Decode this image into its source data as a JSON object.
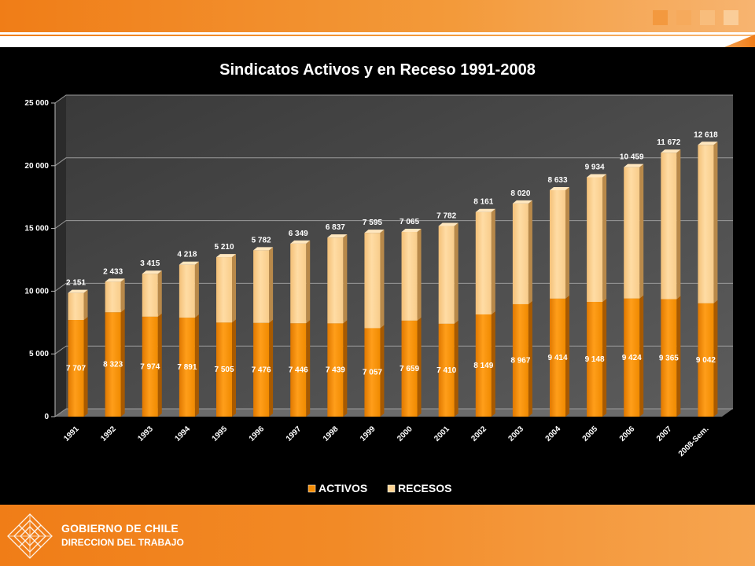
{
  "colors": {
    "accent": "#f07d17",
    "activos": "#f28c06",
    "recesos": "#fcd291",
    "panel": "#000000",
    "text": "#ffffff"
  },
  "footer": {
    "org": "GOBIERNO DE CHILE",
    "dept": "DIRECCION DEL TRABAJO",
    "logo_icon": "gobierno-de-chile-logo"
  },
  "chart_data": {
    "type": "bar",
    "stacked": true,
    "title": "Sindicatos Activos y en Receso 1991-2008",
    "categories": [
      "1991",
      "1992",
      "1993",
      "1994",
      "1995",
      "1996",
      "1997",
      "1998",
      "1999",
      "2000",
      "2001",
      "2002",
      "2003",
      "2004",
      "2005",
      "2006",
      "2007",
      "2008-Sem."
    ],
    "series": [
      {
        "name": "ACTIVOS",
        "values": [
          7707,
          8323,
          7974,
          7891,
          7505,
          7476,
          7446,
          7439,
          7057,
          7659,
          7410,
          8149,
          8967,
          9414,
          9148,
          9424,
          9365,
          9042
        ]
      },
      {
        "name": "RECESOS",
        "values": [
          2151,
          2433,
          3415,
          4218,
          5210,
          5782,
          6349,
          6837,
          7595,
          7065,
          7782,
          8161,
          8020,
          8633,
          9934,
          10459,
          11672,
          12618
        ]
      }
    ],
    "data_labels": {
      "ACTIVOS": [
        "7 707",
        "8 323",
        "7 974",
        "7 891",
        "7 505",
        "7 476",
        "7 446",
        "7 439",
        "7 057",
        "7 659",
        "7 410",
        "8 149",
        "8 967",
        "9 414",
        "9 148",
        "9 424",
        "9 365",
        "9 042"
      ],
      "RECESOS": [
        "2 151",
        "2 433",
        "3 415",
        "4 218",
        "5 210",
        "5 782",
        "6 349",
        "6 837",
        "7 595",
        "7 065",
        "7 782",
        "8 161",
        "8 020",
        "8 633",
        "9 934",
        "10 459",
        "11 672",
        "12 618"
      ]
    },
    "yticks": [
      0,
      5000,
      10000,
      15000,
      20000,
      25000
    ],
    "ytick_labels": [
      "0",
      "5 000",
      "10 000",
      "15 000",
      "20 000",
      "25 000"
    ],
    "ylim": [
      0,
      25000
    ],
    "grid": true,
    "legend_position": "bottom"
  }
}
